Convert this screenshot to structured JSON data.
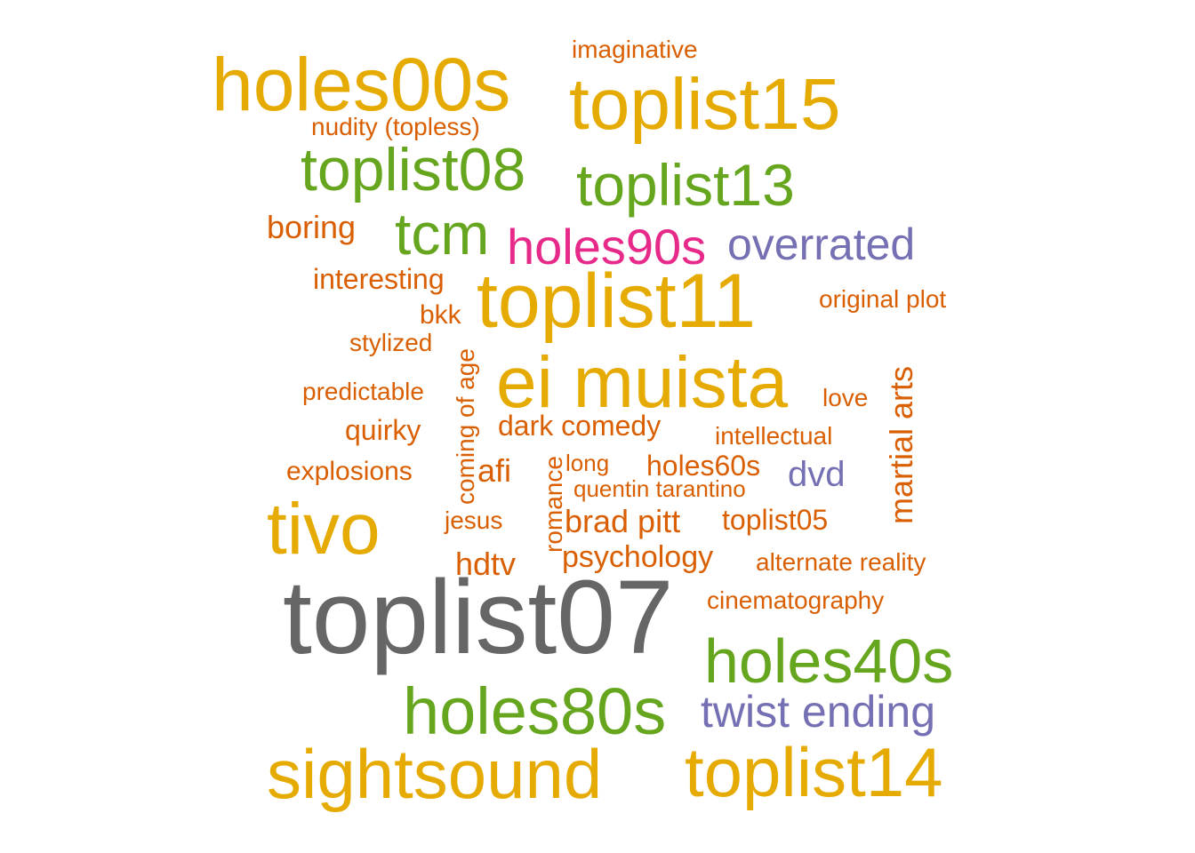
{
  "chart_data": {
    "type": "wordcloud",
    "palette": {
      "yellow": "#E6AB02",
      "green": "#66A61E",
      "orange": "#D95F02",
      "purple": "#7570B3",
      "magenta": "#E7298A",
      "gray": "#666666"
    },
    "words": [
      {
        "text": "toplist07",
        "color": "gray",
        "rotated": false
      },
      {
        "text": "ei muista",
        "color": "yellow",
        "rotated": false
      },
      {
        "text": "toplist11",
        "color": "yellow",
        "rotated": false
      },
      {
        "text": "holes00s",
        "color": "yellow",
        "rotated": false
      },
      {
        "text": "toplist15",
        "color": "yellow",
        "rotated": false
      },
      {
        "text": "tivo",
        "color": "yellow",
        "rotated": false
      },
      {
        "text": "sightsound",
        "color": "yellow",
        "rotated": false
      },
      {
        "text": "toplist14",
        "color": "yellow",
        "rotated": false
      },
      {
        "text": "holes80s",
        "color": "green",
        "rotated": false
      },
      {
        "text": "holes40s",
        "color": "green",
        "rotated": false
      },
      {
        "text": "toplist08",
        "color": "green",
        "rotated": false
      },
      {
        "text": "toplist13",
        "color": "green",
        "rotated": false
      },
      {
        "text": "tcm",
        "color": "green",
        "rotated": false
      },
      {
        "text": "holes90s",
        "color": "magenta",
        "rotated": false
      },
      {
        "text": "overrated",
        "color": "purple",
        "rotated": false
      },
      {
        "text": "twist ending",
        "color": "purple",
        "rotated": false
      },
      {
        "text": "dvd",
        "color": "purple",
        "rotated": false
      },
      {
        "text": "imaginative",
        "color": "orange",
        "rotated": false
      },
      {
        "text": "nudity (topless)",
        "color": "orange",
        "rotated": false
      },
      {
        "text": "boring",
        "color": "orange",
        "rotated": false
      },
      {
        "text": "interesting",
        "color": "orange",
        "rotated": false
      },
      {
        "text": "bkk",
        "color": "orange",
        "rotated": false
      },
      {
        "text": "stylized",
        "color": "orange",
        "rotated": false
      },
      {
        "text": "predictable",
        "color": "orange",
        "rotated": false
      },
      {
        "text": "quirky",
        "color": "orange",
        "rotated": false
      },
      {
        "text": "explosions",
        "color": "orange",
        "rotated": false
      },
      {
        "text": "afi",
        "color": "orange",
        "rotated": false
      },
      {
        "text": "jesus",
        "color": "orange",
        "rotated": false
      },
      {
        "text": "hdtv",
        "color": "orange",
        "rotated": false
      },
      {
        "text": "coming of age",
        "color": "orange",
        "rotated": true
      },
      {
        "text": "romance",
        "color": "orange",
        "rotated": true
      },
      {
        "text": "dark comedy",
        "color": "orange",
        "rotated": false
      },
      {
        "text": "long",
        "color": "orange",
        "rotated": false
      },
      {
        "text": "holes60s",
        "color": "orange",
        "rotated": false
      },
      {
        "text": "quentin tarantino",
        "color": "orange",
        "rotated": false
      },
      {
        "text": "brad pitt",
        "color": "orange",
        "rotated": false
      },
      {
        "text": "toplist05",
        "color": "orange",
        "rotated": false
      },
      {
        "text": "psychology",
        "color": "orange",
        "rotated": false
      },
      {
        "text": "alternate reality",
        "color": "orange",
        "rotated": false
      },
      {
        "text": "cinematography",
        "color": "orange",
        "rotated": false
      },
      {
        "text": "original plot",
        "color": "orange",
        "rotated": false
      },
      {
        "text": "love",
        "color": "orange",
        "rotated": false
      },
      {
        "text": "intellectual",
        "color": "orange",
        "rotated": false
      },
      {
        "text": "martial arts",
        "color": "orange",
        "rotated": true
      }
    ]
  }
}
